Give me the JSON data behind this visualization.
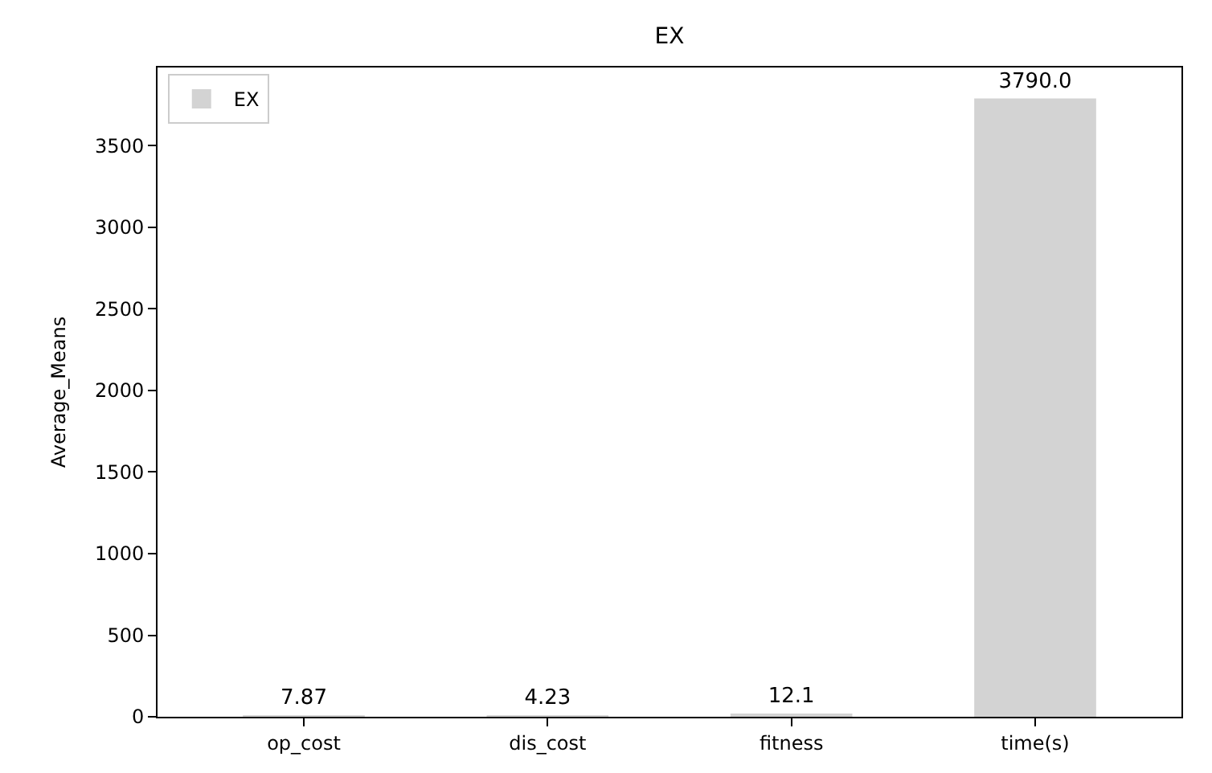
{
  "chart_data": {
    "type": "bar",
    "title": "EX",
    "ylabel": "Average_Means",
    "categories": [
      "op_cost",
      "dis_cost",
      "fitness",
      "time(s)"
    ],
    "series": [
      {
        "name": "EX",
        "color": "#d3d3d3",
        "values": [
          7.87,
          4.23,
          12.1,
          3790.0
        ],
        "value_labels": [
          "7.87",
          "4.23",
          "12.1",
          "3790.0"
        ]
      }
    ],
    "ylim": [
      0,
      3980
    ],
    "yticks": [
      0,
      500,
      1000,
      1500,
      2000,
      2500,
      3000,
      3500
    ],
    "legend": "top left"
  }
}
